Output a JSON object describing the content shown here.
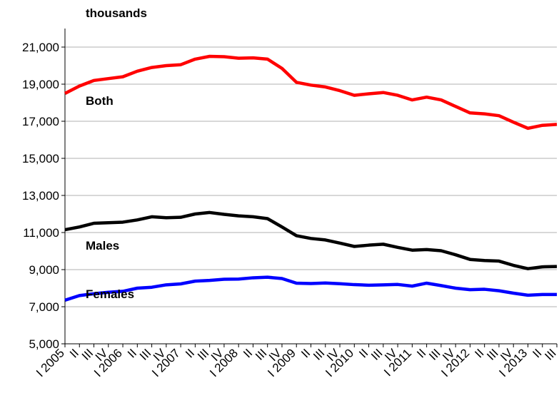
{
  "chart_data": {
    "type": "line",
    "y_label": "thousands",
    "categories": [
      "I 2005",
      "II",
      "III",
      "IV",
      "I 2006",
      "II",
      "III",
      "IV",
      "I 2007",
      "II",
      "III",
      "IV",
      "I 2008",
      "II",
      "III",
      "IV",
      "I 2009",
      "II",
      "III",
      "IV",
      "I 2010",
      "II",
      "III",
      "IV",
      "I 2011",
      "II",
      "III",
      "IV",
      "I 2012",
      "II",
      "III",
      "IV",
      "I 2013",
      "II",
      "III"
    ],
    "series": [
      {
        "name": "Both",
        "color": "#ff0000",
        "values": [
          18500,
          18900,
          19200,
          19300,
          19400,
          19700,
          19900,
          20000,
          20050,
          20350,
          20500,
          20480,
          20400,
          20420,
          20350,
          19850,
          19100,
          18950,
          18850,
          18650,
          18400,
          18480,
          18550,
          18400,
          18150,
          18300,
          18150,
          17800,
          17450,
          17400,
          17300,
          16950,
          16620,
          16780,
          16830
        ]
      },
      {
        "name": "Males",
        "color": "#000000",
        "values": [
          11150,
          11300,
          11500,
          11530,
          11560,
          11680,
          11850,
          11800,
          11820,
          12000,
          12080,
          11980,
          11900,
          11850,
          11750,
          11300,
          10830,
          10680,
          10600,
          10430,
          10250,
          10320,
          10370,
          10200,
          10050,
          10080,
          10020,
          9800,
          9550,
          9490,
          9460,
          9230,
          9050,
          9150,
          9170
        ]
      },
      {
        "name": "Females",
        "color": "#0000ff",
        "values": [
          7350,
          7600,
          7700,
          7780,
          7830,
          8000,
          8050,
          8180,
          8230,
          8380,
          8420,
          8480,
          8490,
          8560,
          8590,
          8520,
          8270,
          8250,
          8280,
          8240,
          8190,
          8160,
          8180,
          8200,
          8110,
          8270,
          8140,
          8000,
          7920,
          7940,
          7860,
          7730,
          7620,
          7660,
          7660
        ]
      }
    ],
    "ylim": [
      5000,
      22000
    ],
    "yticks": [
      {
        "value": 5000,
        "label": "5,000"
      },
      {
        "value": 7000,
        "label": "7,000"
      },
      {
        "value": 9000,
        "label": "9,000"
      },
      {
        "value": 11000,
        "label": "11,000"
      },
      {
        "value": 13000,
        "label": "13,000"
      },
      {
        "value": 15000,
        "label": "15,000"
      },
      {
        "value": 17000,
        "label": "17,000"
      },
      {
        "value": 19000,
        "label": "19,000"
      },
      {
        "value": 21000,
        "label": "21,000"
      }
    ],
    "grid": true
  }
}
